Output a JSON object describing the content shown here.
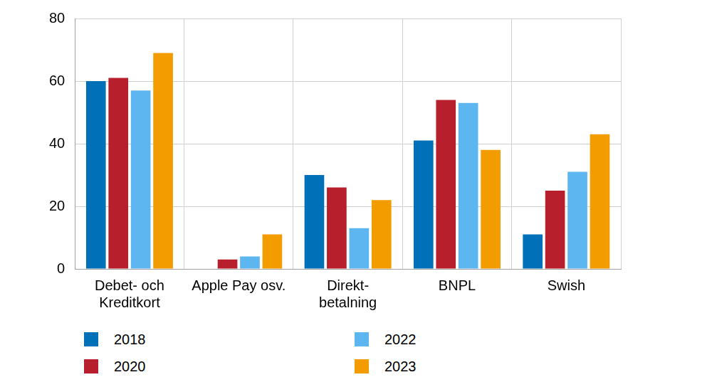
{
  "chart_data": {
    "type": "bar",
    "categories": [
      "Debet- och\nKreditkort",
      "Apple Pay osv.",
      "Direkt-\nbetalning",
      "BNPL",
      "Swish"
    ],
    "series": [
      {
        "name": "2018",
        "color": "#0070b8",
        "values": [
          60,
          null,
          30,
          41,
          11
        ]
      },
      {
        "name": "2020",
        "color": "#b81f2d",
        "values": [
          61,
          3,
          26,
          54,
          25
        ]
      },
      {
        "name": "2022",
        "color": "#5eb6f0",
        "values": [
          57,
          4,
          13,
          53,
          31
        ]
      },
      {
        "name": "2023",
        "color": "#f39c00",
        "values": [
          69,
          11,
          22,
          38,
          43
        ]
      }
    ],
    "ylim": [
      0,
      80
    ],
    "yticks": [
      0,
      20,
      40,
      60,
      80
    ],
    "grid": true,
    "legend": "bottom"
  }
}
